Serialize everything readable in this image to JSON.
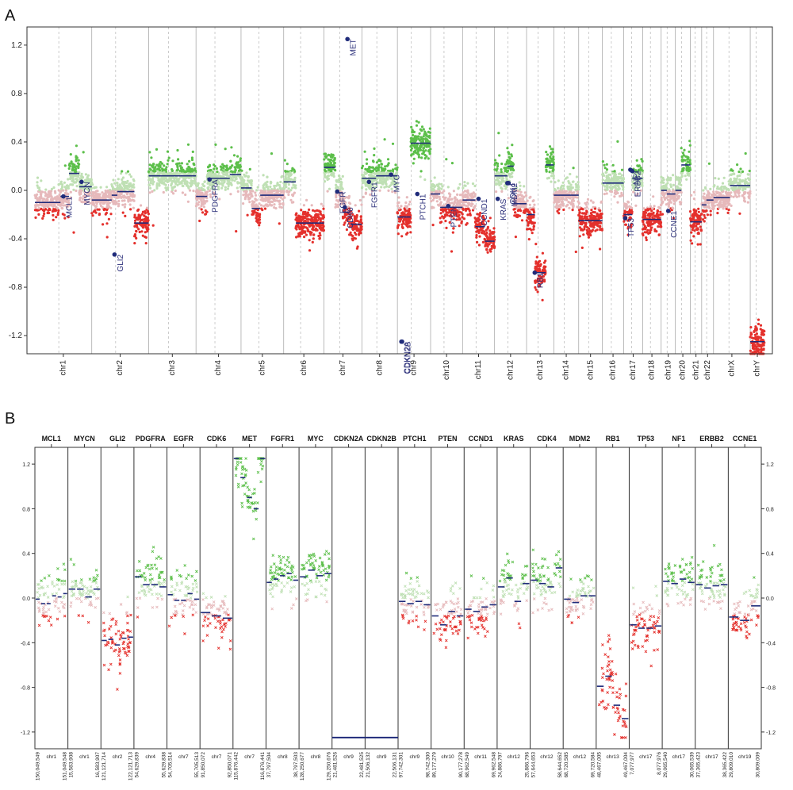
{
  "panels": {
    "a_label": "A",
    "b_label": "B"
  },
  "chart_data": [
    {
      "panel": "A",
      "type": "scatter",
      "description_of_marks": "copy-number log-ratio per probe along genome; segment means as dark blue lines; gene markers as dark blue dots",
      "ylim": [
        -1.35,
        1.35
      ],
      "yticks": [
        1.2,
        0.8,
        0.4,
        0.0,
        -0.4,
        -0.8,
        -1.2
      ],
      "ytick_labels": [
        "1.2",
        "0.8",
        "0.4",
        "0.0",
        "-0.4",
        "-0.8",
        "-1.2"
      ],
      "chromosomes": [
        {
          "name": "chr1",
          "size": 2.4,
          "segments": [
            [
              0,
              0.45,
              -0.1
            ],
            [
              0.45,
              0.6,
              -0.05
            ],
            [
              0.6,
              0.78,
              0.14
            ],
            [
              0.78,
              1,
              0.03
            ]
          ]
        },
        {
          "name": "chr2",
          "size": 2.4,
          "segments": [
            [
              0,
              0.35,
              -0.08
            ],
            [
              0.35,
              0.45,
              -0.04
            ],
            [
              0.45,
              0.75,
              -0.01
            ],
            [
              0.75,
              1,
              -0.27
            ]
          ]
        },
        {
          "name": "chr3",
          "size": 2.0,
          "segments": [
            [
              0,
              1,
              0.12
            ]
          ]
        },
        {
          "name": "chr4",
          "size": 1.9,
          "segments": [
            [
              0,
              0.25,
              -0.05
            ],
            [
              0.25,
              0.75,
              0.1
            ],
            [
              0.75,
              1,
              0.13
            ]
          ]
        },
        {
          "name": "chr5",
          "size": 1.8,
          "segments": [
            [
              0,
              0.25,
              0.02
            ],
            [
              0.25,
              0.45,
              -0.15
            ],
            [
              0.45,
              1,
              -0.04
            ]
          ]
        },
        {
          "name": "chr6",
          "size": 1.7,
          "segments": [
            [
              0,
              0.3,
              0.07
            ],
            [
              0.3,
              1,
              -0.27
            ]
          ]
        },
        {
          "name": "chr7",
          "size": 1.6,
          "segments": [
            [
              0,
              0.3,
              0.19
            ],
            [
              0.3,
              0.5,
              -0.02
            ],
            [
              0.5,
              0.7,
              -0.18
            ],
            [
              0.7,
              1,
              -0.28
            ]
          ]
        },
        {
          "name": "chr8",
          "size": 1.5,
          "segments": [
            [
              0,
              0.4,
              0.1
            ],
            [
              0.4,
              1,
              0.12
            ]
          ]
        },
        {
          "name": "chr9",
          "size": 1.4,
          "segments": [
            [
              0,
              0.4,
              -0.22
            ],
            [
              0.4,
              1,
              0.39
            ]
          ]
        },
        {
          "name": "chr10",
          "size": 1.35,
          "segments": [
            [
              0,
              0.3,
              -0.03
            ],
            [
              0.3,
              1,
              -0.14
            ]
          ]
        },
        {
          "name": "chr11",
          "size": 1.35,
          "segments": [
            [
              0,
              0.4,
              -0.08
            ],
            [
              0.4,
              0.7,
              -0.3
            ],
            [
              0.7,
              1,
              -0.42
            ]
          ]
        },
        {
          "name": "chr12",
          "size": 1.35,
          "segments": [
            [
              0,
              0.4,
              0.12
            ],
            [
              0.4,
              0.6,
              0.2
            ],
            [
              0.6,
              1,
              -0.11
            ]
          ]
        },
        {
          "name": "chr13",
          "size": 1.15,
          "segments": [
            [
              0,
              0.3,
              -0.2
            ],
            [
              0.3,
              0.7,
              -0.68
            ],
            [
              0.7,
              1,
              0.21
            ]
          ]
        },
        {
          "name": "chr14",
          "size": 1.05,
          "segments": [
            [
              0,
              1,
              -0.04
            ]
          ]
        },
        {
          "name": "chr15",
          "size": 1.0,
          "segments": [
            [
              0,
              1,
              -0.25
            ]
          ]
        },
        {
          "name": "chr16",
          "size": 0.9,
          "segments": [
            [
              0,
              1,
              0.06
            ]
          ]
        },
        {
          "name": "chr17",
          "size": 0.8,
          "segments": [
            [
              0,
              0.45,
              -0.2
            ],
            [
              0.45,
              1,
              0.1
            ]
          ]
        },
        {
          "name": "chr18",
          "size": 0.78,
          "segments": [
            [
              0,
              1,
              -0.24
            ]
          ]
        },
        {
          "name": "chr19",
          "size": 0.6,
          "segments": [
            [
              0,
              0.4,
              0.0
            ],
            [
              0.4,
              1,
              -0.03
            ]
          ]
        },
        {
          "name": "chr20",
          "size": 0.63,
          "segments": [
            [
              0,
              0.4,
              0.0
            ],
            [
              0.4,
              1,
              0.21
            ]
          ]
        },
        {
          "name": "chr21",
          "size": 0.48,
          "segments": [
            [
              0,
              1,
              -0.26
            ]
          ]
        },
        {
          "name": "chr22",
          "size": 0.5,
          "segments": [
            [
              0,
              0.4,
              -0.12
            ],
            [
              0.4,
              1,
              -0.08
            ]
          ]
        },
        {
          "name": "chrX",
          "size": 1.55,
          "segments": [
            [
              0,
              0.45,
              -0.06
            ],
            [
              0.45,
              1,
              0.04
            ]
          ]
        },
        {
          "name": "chrY",
          "size": 0.6,
          "segments": [
            [
              0,
              1,
              -1.25
            ]
          ]
        }
      ],
      "gene_markers": [
        {
          "gene": "MCL1",
          "chr": "chr1",
          "pos": 0.5,
          "value": -0.05
        },
        {
          "gene": "MYCN",
          "chr": "chr1",
          "pos": 0.82,
          "value": 0.07
        },
        {
          "gene": "GLI2",
          "chr": "chr2",
          "pos": 0.4,
          "value": -0.53
        },
        {
          "gene": "PDGFRA",
          "chr": "chr4",
          "pos": 0.3,
          "value": 0.09
        },
        {
          "gene": "EGFR",
          "chr": "chr7",
          "pos": 0.35,
          "value": -0.01
        },
        {
          "gene": "CDK6",
          "chr": "chr7",
          "pos": 0.55,
          "value": -0.14
        },
        {
          "gene": "MET",
          "chr": "chr7",
          "pos": 0.62,
          "value": 1.25
        },
        {
          "gene": "FGFR1",
          "chr": "chr8",
          "pos": 0.2,
          "value": 0.07
        },
        {
          "gene": "MYC",
          "chr": "chr8",
          "pos": 0.82,
          "value": 0.13
        },
        {
          "gene": "CDKN2A",
          "chr": "chr9",
          "pos": 0.12,
          "value": -1.25
        },
        {
          "gene": "CDKN2B",
          "chr": "chr9",
          "pos": 0.14,
          "value": -1.25
        },
        {
          "gene": "PTCH1",
          "chr": "chr9",
          "pos": 0.6,
          "value": -0.03
        },
        {
          "gene": "PTEN",
          "chr": "chr10",
          "pos": 0.55,
          "value": -0.13
        },
        {
          "gene": "CCND1",
          "chr": "chr11",
          "pos": 0.5,
          "value": -0.07
        },
        {
          "gene": "KRAS",
          "chr": "chr12",
          "pos": 0.1,
          "value": -0.07
        },
        {
          "gene": "CDK4",
          "chr": "chr12",
          "pos": 0.4,
          "value": 0.06
        },
        {
          "gene": "MDM2",
          "chr": "chr12",
          "pos": 0.44,
          "value": 0.06
        },
        {
          "gene": "RB1",
          "chr": "chr13",
          "pos": 0.3,
          "value": -0.68
        },
        {
          "gene": "TP53",
          "chr": "chr17",
          "pos": 0.08,
          "value": -0.23
        },
        {
          "gene": "NF1",
          "chr": "chr17",
          "pos": 0.35,
          "value": 0.17
        },
        {
          "gene": "ERBB2",
          "chr": "chr17",
          "pos": 0.45,
          "value": 0.16
        },
        {
          "gene": "CCNE1",
          "chr": "chr19",
          "pos": 0.5,
          "value": -0.17
        }
      ],
      "colors": {
        "gain": "#5cbf4a",
        "loss": "#e4302c",
        "neutral_gain": "#bfe0b4",
        "neutral_loss": "#e6b9bb",
        "segment": "#1f2b7a",
        "gene_dot": "#1f2b7a",
        "chr_sep": "#aaaaaa",
        "centromere": "#b7b7b7"
      }
    },
    {
      "panel": "B",
      "type": "scatter",
      "description_of_marks": "zoomed per-gene probe log-ratios (x markers); segment means as short dark blue dashes",
      "ylim": [
        -1.35,
        1.35
      ],
      "yticks": [
        1.2,
        0.8,
        0.4,
        0.0,
        -0.4,
        -0.8,
        -1.2
      ],
      "ytick_labels": [
        "1.2",
        "0.8",
        "0.4",
        "0.0",
        "-0.4",
        "-0.8",
        "-1.2"
      ],
      "genes": [
        {
          "name": "MCL1",
          "chr": "chr1",
          "start": "150,049,549",
          "end": "151,049,548",
          "levels": [
            -0.01,
            -0.05,
            -0.05,
            0.02,
            0.01,
            0.04
          ],
          "spread": 0.16
        },
        {
          "name": "MYCN",
          "chr": "chr1",
          "start": "15,583,908",
          "end": "16,583,907",
          "levels": [
            0.08,
            0.08,
            0.01,
            0.08
          ],
          "spread": 0.14
        },
        {
          "name": "GLI2",
          "chr": "chr2",
          "start": "121,121,714",
          "end": "122,121,713",
          "levels": [
            -0.38,
            -0.37,
            -0.42,
            -0.36,
            -0.35
          ],
          "spread": 0.2
        },
        {
          "name": "PDGFRA",
          "chr": "chr4",
          "start": "54,629,839",
          "end": "55,629,838",
          "levels": [
            0.19,
            0.12,
            0.12,
            0.1
          ],
          "spread": 0.17
        },
        {
          "name": "EGFR",
          "chr": "chr7",
          "start": "54,705,514",
          "end": "55,705,513",
          "levels": [
            0.03,
            -0.02,
            -0.02,
            0.04,
            -0.01
          ],
          "spread": 0.16
        },
        {
          "name": "CDK6",
          "chr": "chr7",
          "start": "91,850,072",
          "end": "92,850,071",
          "levels": [
            -0.13,
            -0.16,
            -0.18
          ],
          "spread": 0.16
        },
        {
          "name": "MET",
          "chr": "chr7",
          "start": "115,876,442",
          "end": "116,876,441",
          "levels": [
            1.25,
            1.08,
            0.9,
            0.8,
            1.25
          ],
          "spread": 0.18
        },
        {
          "name": "FGFR1",
          "chr": "chr8",
          "start": "37,797,504",
          "end": "38,797,503",
          "levels": [
            0.14,
            0.17,
            0.2,
            0.22,
            0.16
          ],
          "spread": 0.15
        },
        {
          "name": "MYC",
          "chr": "chr8",
          "start": "128,250,677",
          "end": "129,250,676",
          "levels": [
            0.19,
            0.25,
            0.2,
            0.22
          ],
          "spread": 0.15
        },
        {
          "name": "CDKN2A",
          "chr": "chr9",
          "start": "21,481,526",
          "end": "22,481,525",
          "levels": [
            -1.25
          ],
          "spread": 0.0
        },
        {
          "name": "CDKN2B",
          "chr": "chr9",
          "start": "21,506,132",
          "end": "22,506,131",
          "levels": [
            -1.25
          ],
          "spread": 0.0
        },
        {
          "name": "PTCH1",
          "chr": "chr9",
          "start": "97,742,301",
          "end": "98,742,300",
          "levels": [
            -0.03,
            -0.05,
            -0.03,
            -0.06
          ],
          "spread": 0.15
        },
        {
          "name": "PTEN",
          "chr": "chr10",
          "start": "89,177,279",
          "end": "90,177,278",
          "levels": [
            -0.16,
            -0.24,
            -0.12,
            -0.16
          ],
          "spread": 0.17
        },
        {
          "name": "CCND1",
          "chr": "chr11",
          "start": "68,962,549",
          "end": "69,962,548",
          "levels": [
            -0.1,
            -0.12,
            -0.08,
            -0.06
          ],
          "spread": 0.16
        },
        {
          "name": "KRAS",
          "chr": "chr12",
          "start": "24,886,797",
          "end": "25,886,796",
          "levels": [
            0.1,
            0.18,
            -0.03,
            0.13
          ],
          "spread": 0.16
        },
        {
          "name": "CDK4",
          "chr": "chr12",
          "start": "57,644,653",
          "end": "58,644,652",
          "levels": [
            0.16,
            0.13,
            0.1,
            0.27
          ],
          "spread": 0.18
        },
        {
          "name": "MDM2",
          "chr": "chr12",
          "start": "68,720,585",
          "end": "69,720,584",
          "levels": [
            -0.01,
            -0.04,
            0.02,
            0.02
          ],
          "spread": 0.14
        },
        {
          "name": "RB1",
          "chr": "chr13",
          "start": "48,467,005",
          "end": "49,467,004",
          "levels": [
            -0.79,
            -0.7,
            -0.96,
            -1.08
          ],
          "spread": 0.22
        },
        {
          "name": "TP53",
          "chr": "chr17",
          "start": "7,077,977",
          "end": "8,077,976",
          "levels": [
            -0.24,
            -0.27,
            -0.27,
            -0.25
          ],
          "spread": 0.2
        },
        {
          "name": "NF1",
          "chr": "chr17",
          "start": "29,065,540",
          "end": "30,065,539",
          "levels": [
            0.15,
            0.13,
            0.17,
            0.14
          ],
          "spread": 0.16
        },
        {
          "name": "ERBB2",
          "chr": "chr17",
          "start": "37,365,423",
          "end": "38,365,422",
          "levels": [
            0.12,
            0.09,
            0.11,
            0.12
          ],
          "spread": 0.17
        },
        {
          "name": "CCNE1",
          "chr": "chr19",
          "start": "29,809,010",
          "end": "30,809,009",
          "levels": [
            -0.17,
            -0.2,
            -0.07
          ],
          "spread": 0.15
        }
      ]
    }
  ]
}
